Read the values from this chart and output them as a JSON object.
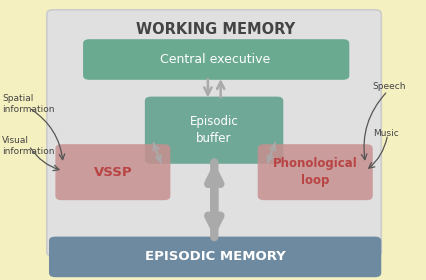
{
  "bg_outer": "#f5f0c0",
  "bg_wm_box": "#e0e0e0",
  "bg_episodic_memory": "#6e8aa0",
  "bg_central_exec": "#6aaa90",
  "bg_episodic_buffer": "#70a898",
  "bg_vssp": "#c89090",
  "bg_phono": "#c89090",
  "text_wm": "WORKING MEMORY",
  "text_em": "EPISODIC MEMORY",
  "text_ce": "Central executive",
  "text_eb": "Episodic\nbuffer",
  "text_vssp": "VSSP",
  "text_phono": "Phonological\nloop",
  "text_spatial": "Spatial\ninformation",
  "text_visual": "Visual\ninformation",
  "text_speech": "Speech",
  "text_music": "Music",
  "arrow_color": "#aaaaaa",
  "wm_title_color": "#444444",
  "vssp_text_color": "#b84444",
  "phono_text_color": "#b84444"
}
